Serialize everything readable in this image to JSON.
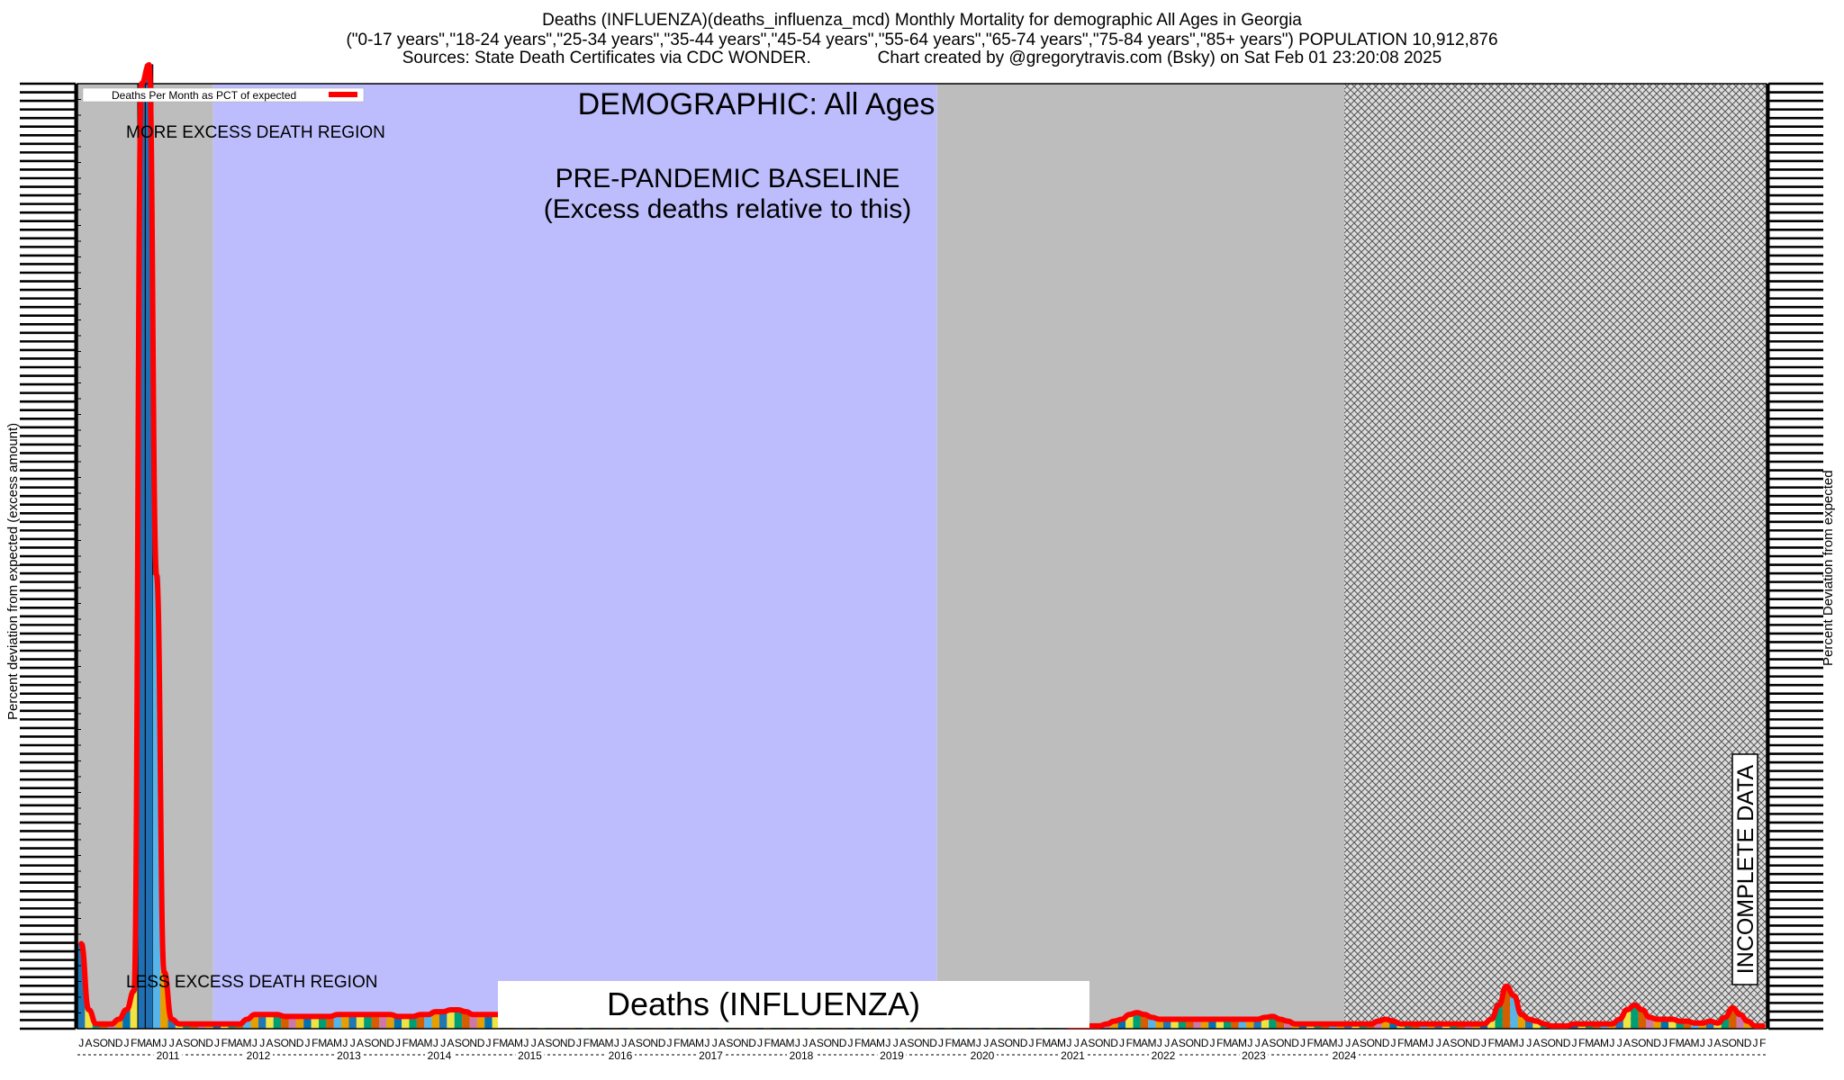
{
  "header": {
    "line1": "Deaths (INFLUENZA)(deaths_influenza_mcd) Monthly Mortality for demographic All Ages in Georgia",
    "line2": "(\"0-17 years\",\"18-24 years\",\"25-34 years\",\"35-44 years\",\"45-54 years\",\"55-64 years\",\"65-74 years\",\"75-84 years\",\"85+ years\") POPULATION 10,912,876",
    "line3": "Sources: State Death Certificates via CDC WONDER.              Chart created by @gregorytravis.com (Bsky) on Sat Feb 01 23:20:08 2025"
  },
  "chart_data": {
    "type": "line",
    "x_start": "2010-07",
    "x_end": "2024-12",
    "ylabel_left": "Percent deviation from expected (excess amount)",
    "ylabel_right": "Percent Deviation from expected",
    "legend": {
      "label": "Deaths Per Month as PCT of expected",
      "color": "#ff0000",
      "placement": "top-left"
    },
    "annotations": {
      "demographic": "DEMOGRAPHIC: All Ages",
      "more_excess": "MORE EXCESS DEATH REGION",
      "less_excess": "LESS EXCESS DEATH REGION",
      "baseline_title": "PRE-PANDEMIC BASELINE",
      "baseline_subtitle": "(Excess deaths relative to this)",
      "incomplete": "INCOMPLETE DATA",
      "bottom_title": "Deaths (INFLUENZA)"
    },
    "regions": {
      "baseline": {
        "start": "2012-01",
        "end": "2019-12",
        "color": "#bdbdfd"
      },
      "other_color": "#bdbdbd",
      "incomplete": {
        "start": "2024-07",
        "end": "2024-12"
      }
    },
    "month_labels": [
      "J",
      "F",
      "M",
      "A",
      "M",
      "J",
      "J",
      "A",
      "S",
      "O",
      "N",
      "D"
    ],
    "years": [
      "2011",
      "2012",
      "2013",
      "2014",
      "2015",
      "2016",
      "2017",
      "2018",
      "2019",
      "2020",
      "2021",
      "2022",
      "2023",
      "2024"
    ],
    "series": [
      {
        "name": "Deaths Per Month as PCT of expected",
        "color": "#ff0000",
        "values": [
          9,
          2,
          0.5,
          0.5,
          0.5,
          1,
          2,
          4,
          100,
          102,
          48,
          6,
          1,
          0.5,
          0.5,
          0.5,
          0.5,
          0.5,
          0.5,
          0.5,
          0.5,
          0.5,
          1,
          1.5,
          1.5,
          1.5,
          1.5,
          1.3,
          1.3,
          1.3,
          1.3,
          1.3,
          1.3,
          1.3,
          1.5,
          1.5,
          1.5,
          1.5,
          1.5,
          1.5,
          1.5,
          1.5,
          1.3,
          1.3,
          1.3,
          1.5,
          1.5,
          1.8,
          1.8,
          2,
          2,
          1.8,
          1.5,
          1.5,
          1.5,
          1.5,
          1.5,
          1.5,
          1.5,
          1.5,
          1.5,
          1.5,
          1.5,
          1.5,
          1.5,
          1.5,
          1.5,
          1.5,
          1.5,
          1.5,
          1.5,
          1.5,
          1.5,
          1.5,
          1.5,
          1.5,
          1.5,
          1.5,
          1.5,
          1.5,
          1.5,
          1.5,
          1.5,
          1.5,
          1.5,
          1.5,
          1.5,
          1.5,
          1.5,
          1.5,
          1.5,
          1.5,
          1.5,
          1.5,
          1.5,
          1.5,
          1.5,
          1.5,
          1.5,
          1.5,
          1.5,
          1.5,
          1.5,
          1.5,
          1.5,
          1.5,
          1.5,
          1.5,
          1.5,
          1.5,
          1.5,
          1.5,
          1.5,
          1.5,
          1.5,
          1.5,
          1.5,
          1.5,
          1.5,
          1.5,
          1.5,
          1.5,
          1.5,
          1.5,
          1.5,
          1.5,
          1.5,
          1.5,
          1.5,
          1.5,
          0.5,
          0.3,
          0.3,
          0.3,
          0.3,
          0.3,
          0.5,
          0.8,
          1,
          1.5,
          1.7,
          1.5,
          1.2,
          1,
          1,
          1,
          1,
          1,
          1,
          1,
          1,
          1,
          1,
          1,
          1,
          1,
          1,
          1.2,
          1.3,
          1,
          0.8,
          0.5,
          0.5,
          0.5,
          0.5,
          0.5,
          0.5,
          0.5,
          0.5,
          0.5,
          0.5,
          0.5,
          0.8,
          1,
          0.8,
          0.5,
          0.5,
          0.5,
          0.5,
          0.5,
          0.5,
          0.5,
          0.5,
          0.5,
          0.5,
          0.5,
          0.5,
          1,
          2.5,
          4.5,
          3.5,
          1.5,
          1,
          0.8,
          0.5,
          0.3,
          0.3,
          0.3,
          0.5,
          0.5,
          0.5,
          0.5,
          0.5,
          0.5,
          1,
          2,
          2.5,
          2,
          1.2,
          1,
          1,
          1,
          0.8,
          0.8,
          0.6,
          0.6,
          0.8,
          0.6,
          1.2,
          2.2,
          1.5,
          0.8,
          0.3,
          0.3
        ]
      }
    ]
  }
}
